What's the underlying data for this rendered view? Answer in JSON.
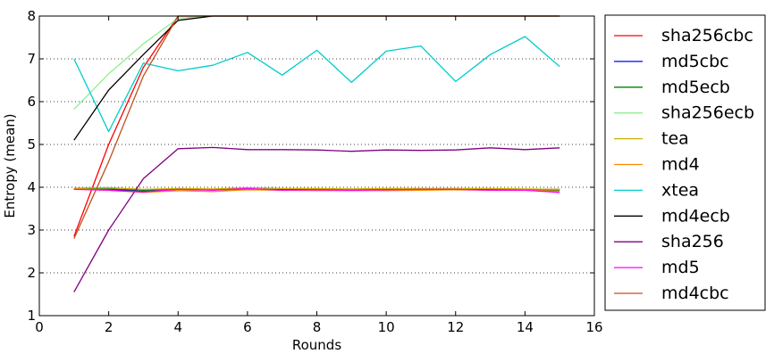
{
  "chart_data": {
    "type": "line",
    "title": "",
    "xlabel": "Rounds",
    "ylabel": "Entropy (mean)",
    "xlim": [
      0,
      16
    ],
    "ylim": [
      1,
      8
    ],
    "xticks": [
      0,
      2,
      4,
      6,
      8,
      10,
      12,
      14,
      16
    ],
    "yticks": [
      1,
      2,
      3,
      4,
      5,
      6,
      7,
      8
    ],
    "grid": "horizontal dotted",
    "legend_position": "right outside",
    "series": [
      {
        "name": "sha256cbc",
        "color": "#ff0000",
        "x": [
          1,
          2,
          3,
          4,
          5,
          6,
          7,
          8,
          9,
          10,
          11,
          12,
          13,
          14,
          15
        ],
        "y": [
          2.85,
          5.0,
          6.8,
          8.0,
          8.0,
          8.0,
          8.0,
          8.0,
          8.0,
          8.0,
          8.0,
          8.0,
          8.0,
          8.0,
          8.0
        ]
      },
      {
        "name": "md5cbc",
        "color": "#0000ff",
        "x": [
          1,
          2,
          3,
          4,
          5,
          6,
          7,
          8,
          9,
          10,
          11,
          12,
          13,
          14,
          15
        ],
        "y": [
          3.95,
          3.95,
          3.9,
          3.95,
          3.95,
          3.95,
          3.95,
          3.95,
          3.95,
          3.95,
          3.95,
          3.95,
          3.95,
          3.95,
          3.95
        ]
      },
      {
        "name": "md5ecb",
        "color": "#008000",
        "x": [
          1,
          2,
          3,
          4,
          5,
          6,
          7,
          8,
          9,
          10,
          11,
          12,
          13,
          14,
          15
        ],
        "y": [
          3.95,
          3.96,
          3.93,
          3.95,
          3.94,
          3.95,
          3.94,
          3.95,
          3.94,
          3.95,
          3.95,
          3.95,
          3.95,
          3.94,
          3.93
        ]
      },
      {
        "name": "sha256ecb",
        "color": "#90ee90",
        "x": [
          1,
          2,
          3,
          4,
          5,
          6,
          7,
          8,
          9,
          10,
          11,
          12,
          13,
          14,
          15
        ],
        "y": [
          5.82,
          6.65,
          7.35,
          7.95,
          8.0,
          8.0,
          8.0,
          8.0,
          8.0,
          8.0,
          8.0,
          8.0,
          8.0,
          8.0,
          8.0
        ]
      },
      {
        "name": "tea",
        "color": "#ccb000",
        "x": [
          1,
          2,
          3,
          4,
          5,
          6,
          7,
          8,
          9,
          10,
          11,
          12,
          13,
          14,
          15
        ],
        "y": [
          3.98,
          3.99,
          3.95,
          3.97,
          3.96,
          3.99,
          3.97,
          3.97,
          3.96,
          3.97,
          3.97,
          3.97,
          3.97,
          3.96,
          3.95
        ]
      },
      {
        "name": "md4",
        "color": "#ff8c00",
        "x": [
          1,
          2,
          3,
          4,
          5,
          6,
          7,
          8,
          9,
          10,
          11,
          12,
          13,
          14,
          15
        ],
        "y": [
          3.96,
          3.93,
          3.88,
          3.92,
          3.9,
          3.94,
          3.93,
          3.92,
          3.92,
          3.92,
          3.93,
          3.94,
          3.93,
          3.93,
          3.91
        ]
      },
      {
        "name": "xtea",
        "color": "#00cccc",
        "x": [
          1,
          2,
          3,
          4,
          5,
          6,
          7,
          8,
          9,
          10,
          11,
          12,
          13,
          14,
          15
        ],
        "y": [
          7.0,
          5.3,
          6.9,
          6.72,
          6.85,
          7.15,
          6.62,
          7.2,
          6.45,
          7.18,
          7.3,
          6.47,
          7.1,
          7.52,
          6.82
        ]
      },
      {
        "name": "md4ecb",
        "color": "#000000",
        "x": [
          1,
          2,
          3,
          4,
          5,
          6,
          7,
          8,
          9,
          10,
          11,
          12,
          13,
          14,
          15
        ],
        "y": [
          5.1,
          6.27,
          7.1,
          7.9,
          8.0,
          8.0,
          8.0,
          8.0,
          8.0,
          8.0,
          8.0,
          8.0,
          8.0,
          8.0,
          8.0
        ]
      },
      {
        "name": "sha256",
        "color": "#800080",
        "x": [
          1,
          2,
          3,
          4,
          5,
          6,
          7,
          8,
          9,
          10,
          11,
          12,
          13,
          14,
          15
        ],
        "y": [
          1.55,
          3.0,
          4.2,
          4.9,
          4.93,
          4.88,
          4.88,
          4.87,
          4.84,
          4.87,
          4.86,
          4.87,
          4.92,
          4.88,
          4.92
        ]
      },
      {
        "name": "md5",
        "color": "#ff00ff",
        "x": [
          1,
          2,
          3,
          4,
          5,
          6,
          7,
          8,
          9,
          10,
          11,
          12,
          13,
          14,
          15
        ],
        "y": [
          3.95,
          3.93,
          3.89,
          3.95,
          3.93,
          3.97,
          3.93,
          3.94,
          3.93,
          3.94,
          3.95,
          3.95,
          3.93,
          3.93,
          3.88
        ]
      },
      {
        "name": "md4cbc",
        "color": "#c0501e",
        "x": [
          1,
          2,
          3,
          4,
          5,
          6,
          7,
          8,
          9,
          10,
          11,
          12,
          13,
          14,
          15
        ],
        "y": [
          2.8,
          4.6,
          6.6,
          8.0,
          8.0,
          8.0,
          8.0,
          8.0,
          8.0,
          8.0,
          8.0,
          8.0,
          8.0,
          8.0,
          8.0
        ]
      }
    ]
  }
}
